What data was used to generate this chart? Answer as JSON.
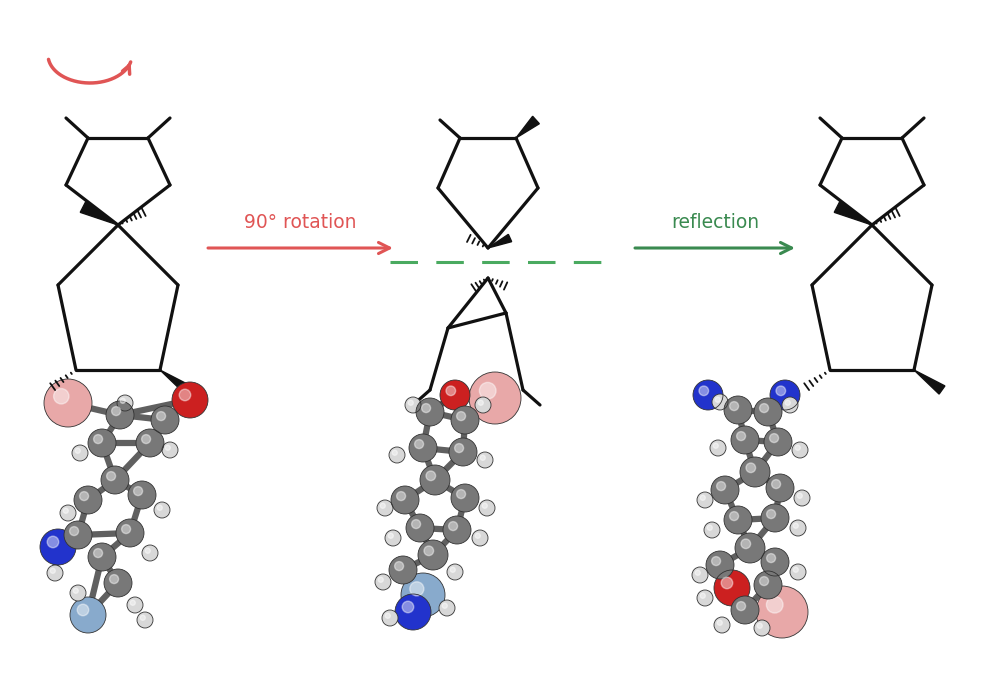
{
  "bg_color": "#ffffff",
  "red": "#e05555",
  "green": "#3a8a50",
  "green_dash": "#4aaa60",
  "rot_text": "90° rotation",
  "ref_text": "reflection",
  "figsize": [
    9.82,
    6.96
  ],
  "dpi": 100,
  "C": "#787878",
  "H": "#d8d8d8",
  "O": "#cc2020",
  "N": "#2233cc",
  "pink": "#e8a8a8",
  "lblue": "#88aacc",
  "bond_color": "#606060"
}
